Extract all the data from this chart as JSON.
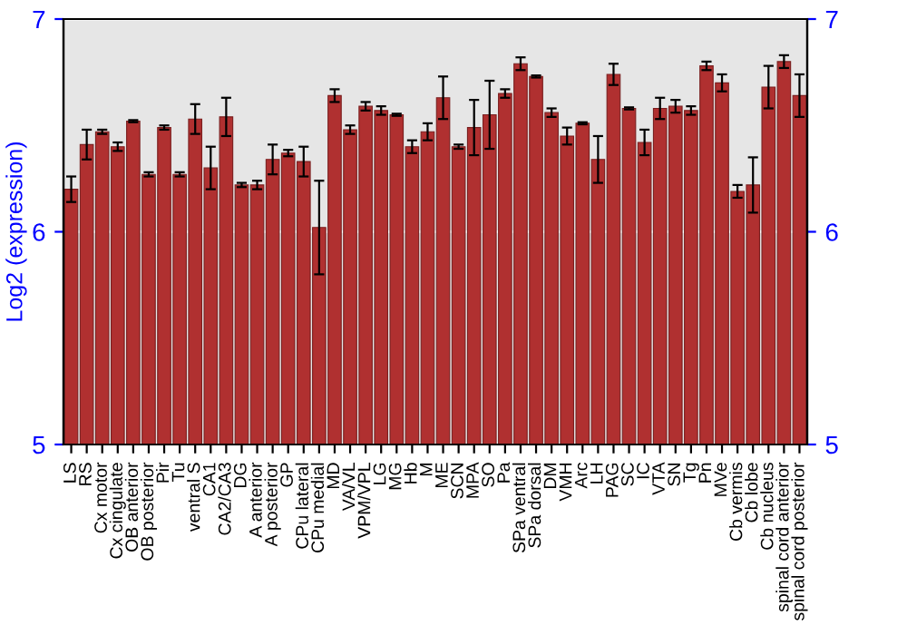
{
  "chart_data": {
    "type": "bar",
    "ylabel": "Log2 (expression)",
    "categories": [
      "LS",
      "RS",
      "Cx motor",
      "Cx cingulate",
      "OB anterior",
      "OB posterior",
      "Pir",
      "Tu",
      "ventral S",
      "CA1",
      "CA2/CA3",
      "DG",
      "A anterior",
      "A posterior",
      "GP",
      "CPu lateral",
      "CPu medial",
      "MD",
      "VA/VL",
      "VPM/VPL",
      "LG",
      "MG",
      "Hb",
      "M",
      "ME",
      "SCN",
      "MPA",
      "SO",
      "Pa",
      "SPa ventral",
      "SPa dorsal",
      "DM",
      "VMH",
      "Arc",
      "LH",
      "PAG",
      "SC",
      "IC",
      "VTA",
      "SN",
      "Tg",
      "Pn",
      "MVe",
      "Cb vermis",
      "Cb lobe",
      "Cb nucleus",
      "spinal cord anterior",
      "spinal cord posterior"
    ],
    "series": [
      {
        "color": "#b03030",
        "values": [
          6.2,
          6.41,
          6.47,
          6.4,
          6.52,
          6.27,
          6.49,
          6.27,
          6.53,
          6.3,
          6.54,
          6.22,
          6.22,
          6.34,
          6.37,
          6.33,
          6.02,
          6.64,
          6.48,
          6.59,
          6.57,
          6.55,
          6.4,
          6.47,
          6.63,
          6.4,
          6.49,
          6.55,
          6.65,
          6.79,
          6.73,
          6.56,
          6.45,
          6.51,
          6.34,
          6.74,
          6.58,
          6.42,
          6.58,
          6.59,
          6.57,
          6.78,
          6.7,
          6.19,
          6.22,
          6.68,
          6.8,
          6.64
        ],
        "errors": [
          0.06,
          0.07,
          0.01,
          0.02,
          0.005,
          0.01,
          0.01,
          0.01,
          0.07,
          0.1,
          0.09,
          0.01,
          0.02,
          0.07,
          0.015,
          0.07,
          0.22,
          0.03,
          0.02,
          0.02,
          0.02,
          0.005,
          0.03,
          0.04,
          0.1,
          0.01,
          0.13,
          0.16,
          0.02,
          0.03,
          0.005,
          0.02,
          0.04,
          0.005,
          0.11,
          0.05,
          0.005,
          0.06,
          0.05,
          0.03,
          0.02,
          0.02,
          0.04,
          0.03,
          0.13,
          0.1,
          0.03,
          0.1
        ]
      }
    ],
    "ylim": [
      5,
      7
    ],
    "yticks": [
      5,
      6,
      7
    ],
    "y2lim": [
      5,
      7
    ],
    "y2ticks": [
      5,
      6,
      7
    ],
    "grid": "y"
  }
}
